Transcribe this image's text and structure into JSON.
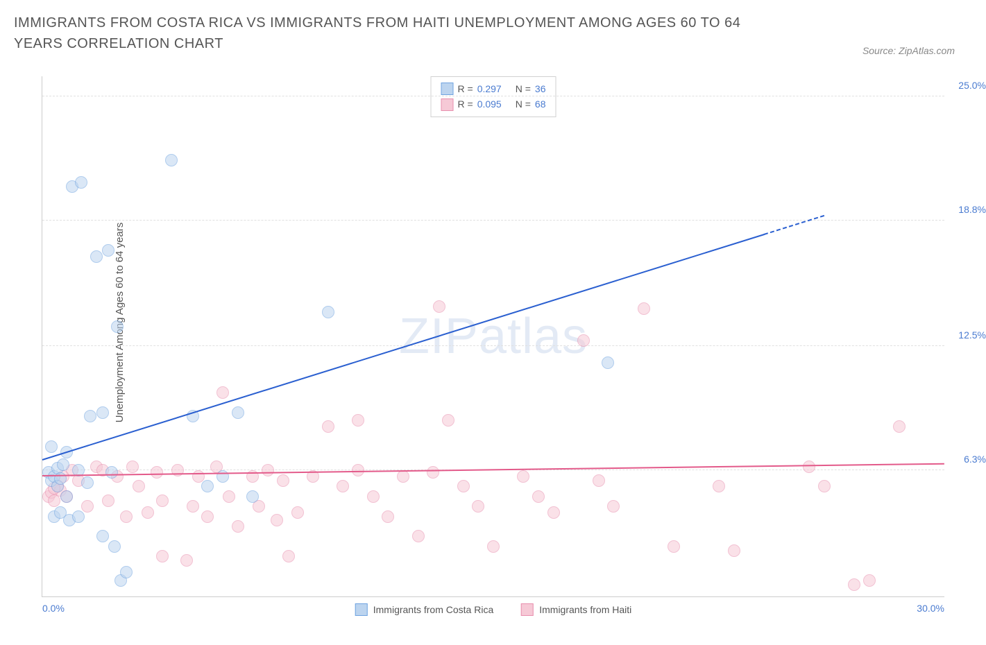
{
  "title": "IMMIGRANTS FROM COSTA RICA VS IMMIGRANTS FROM HAITI UNEMPLOYMENT AMONG AGES 60 TO 64 YEARS CORRELATION CHART",
  "source": "Source: ZipAtlas.com",
  "ylabel": "Unemployment Among Ages 60 to 64 years",
  "watermark_a": "ZIP",
  "watermark_b": "atlas",
  "chart": {
    "type": "scatter",
    "xlim": [
      0,
      30
    ],
    "ylim": [
      0,
      26
    ],
    "xticks": [
      {
        "v": 0,
        "label": "0.0%"
      },
      {
        "v": 30,
        "label": "30.0%"
      }
    ],
    "yticks": [
      {
        "v": 6.3,
        "label": "6.3%"
      },
      {
        "v": 12.5,
        "label": "12.5%"
      },
      {
        "v": 18.8,
        "label": "18.8%"
      },
      {
        "v": 25.0,
        "label": "25.0%"
      }
    ],
    "grid_color": "#e0e0e0",
    "background_color": "#ffffff",
    "marker_radius": 8,
    "marker_opacity": 0.55,
    "series": [
      {
        "name": "Immigrants from Costa Rica",
        "color_fill": "#bcd4ef",
        "color_stroke": "#6fa3e0",
        "trend_color": "#2a5fd0",
        "R_label": "R = ",
        "R_value": "0.297",
        "N_label": "N = ",
        "N_value": "36",
        "trend": {
          "x0": 0,
          "y0": 6.8,
          "x1": 26,
          "y1": 19.0,
          "dash_after_x": 24
        },
        "points": [
          [
            0.2,
            6.2
          ],
          [
            0.3,
            5.8
          ],
          [
            0.4,
            6.0
          ],
          [
            0.5,
            5.5
          ],
          [
            0.5,
            6.4
          ],
          [
            0.6,
            5.9
          ],
          [
            0.7,
            6.6
          ],
          [
            0.8,
            7.2
          ],
          [
            0.8,
            5.0
          ],
          [
            1.0,
            20.5
          ],
          [
            1.3,
            20.7
          ],
          [
            1.2,
            6.3
          ],
          [
            1.5,
            5.7
          ],
          [
            1.8,
            17.0
          ],
          [
            2.2,
            17.3
          ],
          [
            1.6,
            9.0
          ],
          [
            2.0,
            9.2
          ],
          [
            2.3,
            6.2
          ],
          [
            2.0,
            3.0
          ],
          [
            2.4,
            2.5
          ],
          [
            2.6,
            0.8
          ],
          [
            2.8,
            1.2
          ],
          [
            2.5,
            13.5
          ],
          [
            4.3,
            21.8
          ],
          [
            5.0,
            9.0
          ],
          [
            5.5,
            5.5
          ],
          [
            6.0,
            6.0
          ],
          [
            6.5,
            9.2
          ],
          [
            7.0,
            5.0
          ],
          [
            9.5,
            14.2
          ],
          [
            18.8,
            11.7
          ],
          [
            0.4,
            4.0
          ],
          [
            0.6,
            4.2
          ],
          [
            0.9,
            3.8
          ],
          [
            1.2,
            4.0
          ],
          [
            0.3,
            7.5
          ]
        ]
      },
      {
        "name": "Immigrants from Haiti",
        "color_fill": "#f6c9d6",
        "color_stroke": "#e88fae",
        "trend_color": "#e35a8a",
        "R_label": "R = ",
        "R_value": "0.095",
        "N_label": "N = ",
        "N_value": "68",
        "trend": {
          "x0": 0,
          "y0": 6.0,
          "x1": 30,
          "y1": 6.6,
          "dash_after_x": 999
        },
        "points": [
          [
            0.2,
            5.0
          ],
          [
            0.3,
            5.2
          ],
          [
            0.4,
            4.8
          ],
          [
            0.5,
            5.5
          ],
          [
            0.6,
            5.3
          ],
          [
            0.7,
            6.0
          ],
          [
            0.8,
            5.0
          ],
          [
            1.0,
            6.3
          ],
          [
            1.2,
            5.8
          ],
          [
            1.5,
            4.5
          ],
          [
            1.8,
            6.5
          ],
          [
            2.0,
            6.3
          ],
          [
            2.2,
            4.8
          ],
          [
            2.5,
            6.0
          ],
          [
            2.8,
            4.0
          ],
          [
            3.0,
            6.5
          ],
          [
            3.2,
            5.5
          ],
          [
            3.5,
            4.2
          ],
          [
            3.8,
            6.2
          ],
          [
            4.0,
            4.8
          ],
          [
            4.0,
            2.0
          ],
          [
            4.5,
            6.3
          ],
          [
            4.8,
            1.8
          ],
          [
            5.0,
            4.5
          ],
          [
            5.2,
            6.0
          ],
          [
            5.5,
            4.0
          ],
          [
            5.8,
            6.5
          ],
          [
            6.0,
            10.2
          ],
          [
            6.2,
            5.0
          ],
          [
            6.5,
            3.5
          ],
          [
            7.0,
            6.0
          ],
          [
            7.2,
            4.5
          ],
          [
            7.5,
            6.3
          ],
          [
            7.8,
            3.8
          ],
          [
            8.0,
            5.8
          ],
          [
            8.5,
            4.2
          ],
          [
            9.0,
            6.0
          ],
          [
            9.5,
            8.5
          ],
          [
            10.0,
            5.5
          ],
          [
            10.5,
            8.8
          ],
          [
            11.0,
            5.0
          ],
          [
            11.5,
            4.0
          ],
          [
            12.0,
            6.0
          ],
          [
            12.5,
            3.0
          ],
          [
            13.0,
            6.2
          ],
          [
            13.2,
            14.5
          ],
          [
            13.5,
            8.8
          ],
          [
            14.0,
            5.5
          ],
          [
            14.5,
            4.5
          ],
          [
            15.0,
            2.5
          ],
          [
            16.0,
            6.0
          ],
          [
            16.5,
            5.0
          ],
          [
            17.0,
            4.2
          ],
          [
            18.0,
            12.8
          ],
          [
            18.5,
            5.8
          ],
          [
            19.0,
            4.5
          ],
          [
            20.0,
            14.4
          ],
          [
            21.0,
            2.5
          ],
          [
            22.5,
            5.5
          ],
          [
            23.0,
            2.3
          ],
          [
            25.5,
            6.5
          ],
          [
            26.0,
            5.5
          ],
          [
            27.0,
            0.6
          ],
          [
            27.5,
            0.8
          ],
          [
            28.5,
            8.5
          ],
          [
            8.2,
            2.0
          ],
          [
            10.5,
            6.3
          ],
          [
            0.4,
            5.4
          ]
        ]
      }
    ]
  },
  "legend_bottom": [
    {
      "swatch_fill": "#bcd4ef",
      "swatch_stroke": "#6fa3e0",
      "label": "Immigrants from Costa Rica"
    },
    {
      "swatch_fill": "#f6c9d6",
      "swatch_stroke": "#e88fae",
      "label": "Immigrants from Haiti"
    }
  ]
}
